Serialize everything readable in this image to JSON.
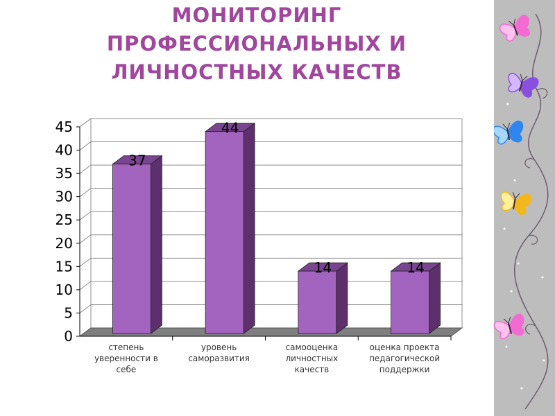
{
  "slide": {
    "title_lines": [
      "МОНИТОРИНГ",
      "ПРОФЕССИОНАЛЬНЫХ И",
      "ЛИЧНОСТНЫХ КАЧЕСТВ"
    ]
  },
  "colors": {
    "title": "#a0469d",
    "bar_front": "#a364c0",
    "bar_side": "#5e2f6d",
    "bar_top": "#7a4590",
    "floor": "#7f7f7f",
    "grid": "#8c8c8c",
    "deco_background": "#bdbdbd"
  },
  "chart_data": {
    "type": "bar",
    "categories": [
      [
        "степень",
        "уверенности в",
        "себе"
      ],
      [
        "уровень",
        "саморазвития"
      ],
      [
        "самооценка",
        "личностных",
        "качеств"
      ],
      [
        "оценка проекта",
        "педагогической",
        "поддержки"
      ]
    ],
    "values": [
      37,
      44,
      14,
      14
    ],
    "ylim": [
      0,
      45
    ],
    "yticks": [
      0,
      5,
      10,
      15,
      20,
      25,
      30,
      35,
      40,
      45
    ],
    "grid": true,
    "style": "3d-column"
  },
  "decoration": {
    "butterfly_icons": [
      "pink",
      "purple",
      "blue",
      "yellow",
      "pink"
    ]
  }
}
